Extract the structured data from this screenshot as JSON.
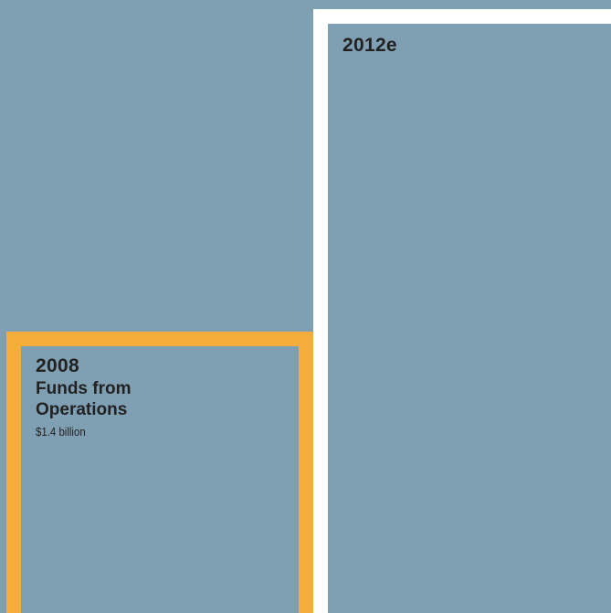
{
  "colors": {
    "background": "#7f9fb3",
    "bar_fill": "#7f9fb3",
    "text": "#222222"
  },
  "chart_data": {
    "type": "bar",
    "categories": [
      "2008",
      "2012e"
    ],
    "values": [
      1.4,
      3.0
    ],
    "bars": [
      {
        "year": "2008",
        "title": "Funds from Operations",
        "value_label": "$1.4 billion",
        "value": 1.4,
        "border_color": "#f6ae3a"
      },
      {
        "year": "2012e",
        "title": "",
        "value_label": "",
        "value": 3.0,
        "border_color": "#ffffff"
      }
    ],
    "title": "",
    "xlabel": "",
    "ylabel": "",
    "ylim": [
      0,
      3.0
    ],
    "grid": false,
    "legend": "none"
  }
}
